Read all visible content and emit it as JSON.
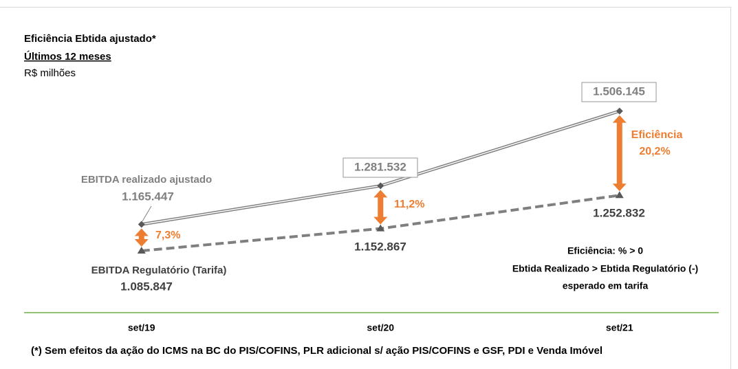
{
  "chart_data": {
    "type": "line",
    "title": "Eficiência Ebtida ajustado*",
    "subtitle": "Últimos 12 meses",
    "unit_label": "R$ milhões",
    "categories": [
      "set/19",
      "set/20",
      "set/21"
    ],
    "series": [
      {
        "name": "EBITDA realizado ajustado",
        "color": "#808080",
        "values": [
          1165447,
          1281532,
          1506145
        ],
        "value_labels": [
          "1.165.447",
          "1.281.532",
          "1.506.145"
        ]
      },
      {
        "name": "EBITDA Regulatório (Tarifa)",
        "color": "#7f7f7f",
        "values": [
          1085847,
          1152867,
          1252832
        ],
        "value_labels": [
          "1.085.847",
          "1.152.867",
          "1.252.832"
        ]
      }
    ],
    "gap_color": "#ED7D31",
    "gaps": [
      {
        "value": 7.3,
        "label": "7,3%"
      },
      {
        "value": 11.2,
        "label": "11,2%"
      },
      {
        "value": 20.2,
        "label": "20,2%"
      }
    ],
    "gap_title": "Eficiência",
    "note": [
      "Eficiência: % > 0",
      "Ebtida Realizado > Ebtida Regulatório (-)",
      "esperado em tarifa"
    ],
    "footnote": "(*) Sem efeitos da ação do ICMS na BC do PIS/COFINS, PLR adicional s/ ação PIS/COFINS e GSF, PDI e Venda Imóvel",
    "ylim": [
      900000,
      1800000
    ],
    "axis_color": "#70AD47"
  }
}
